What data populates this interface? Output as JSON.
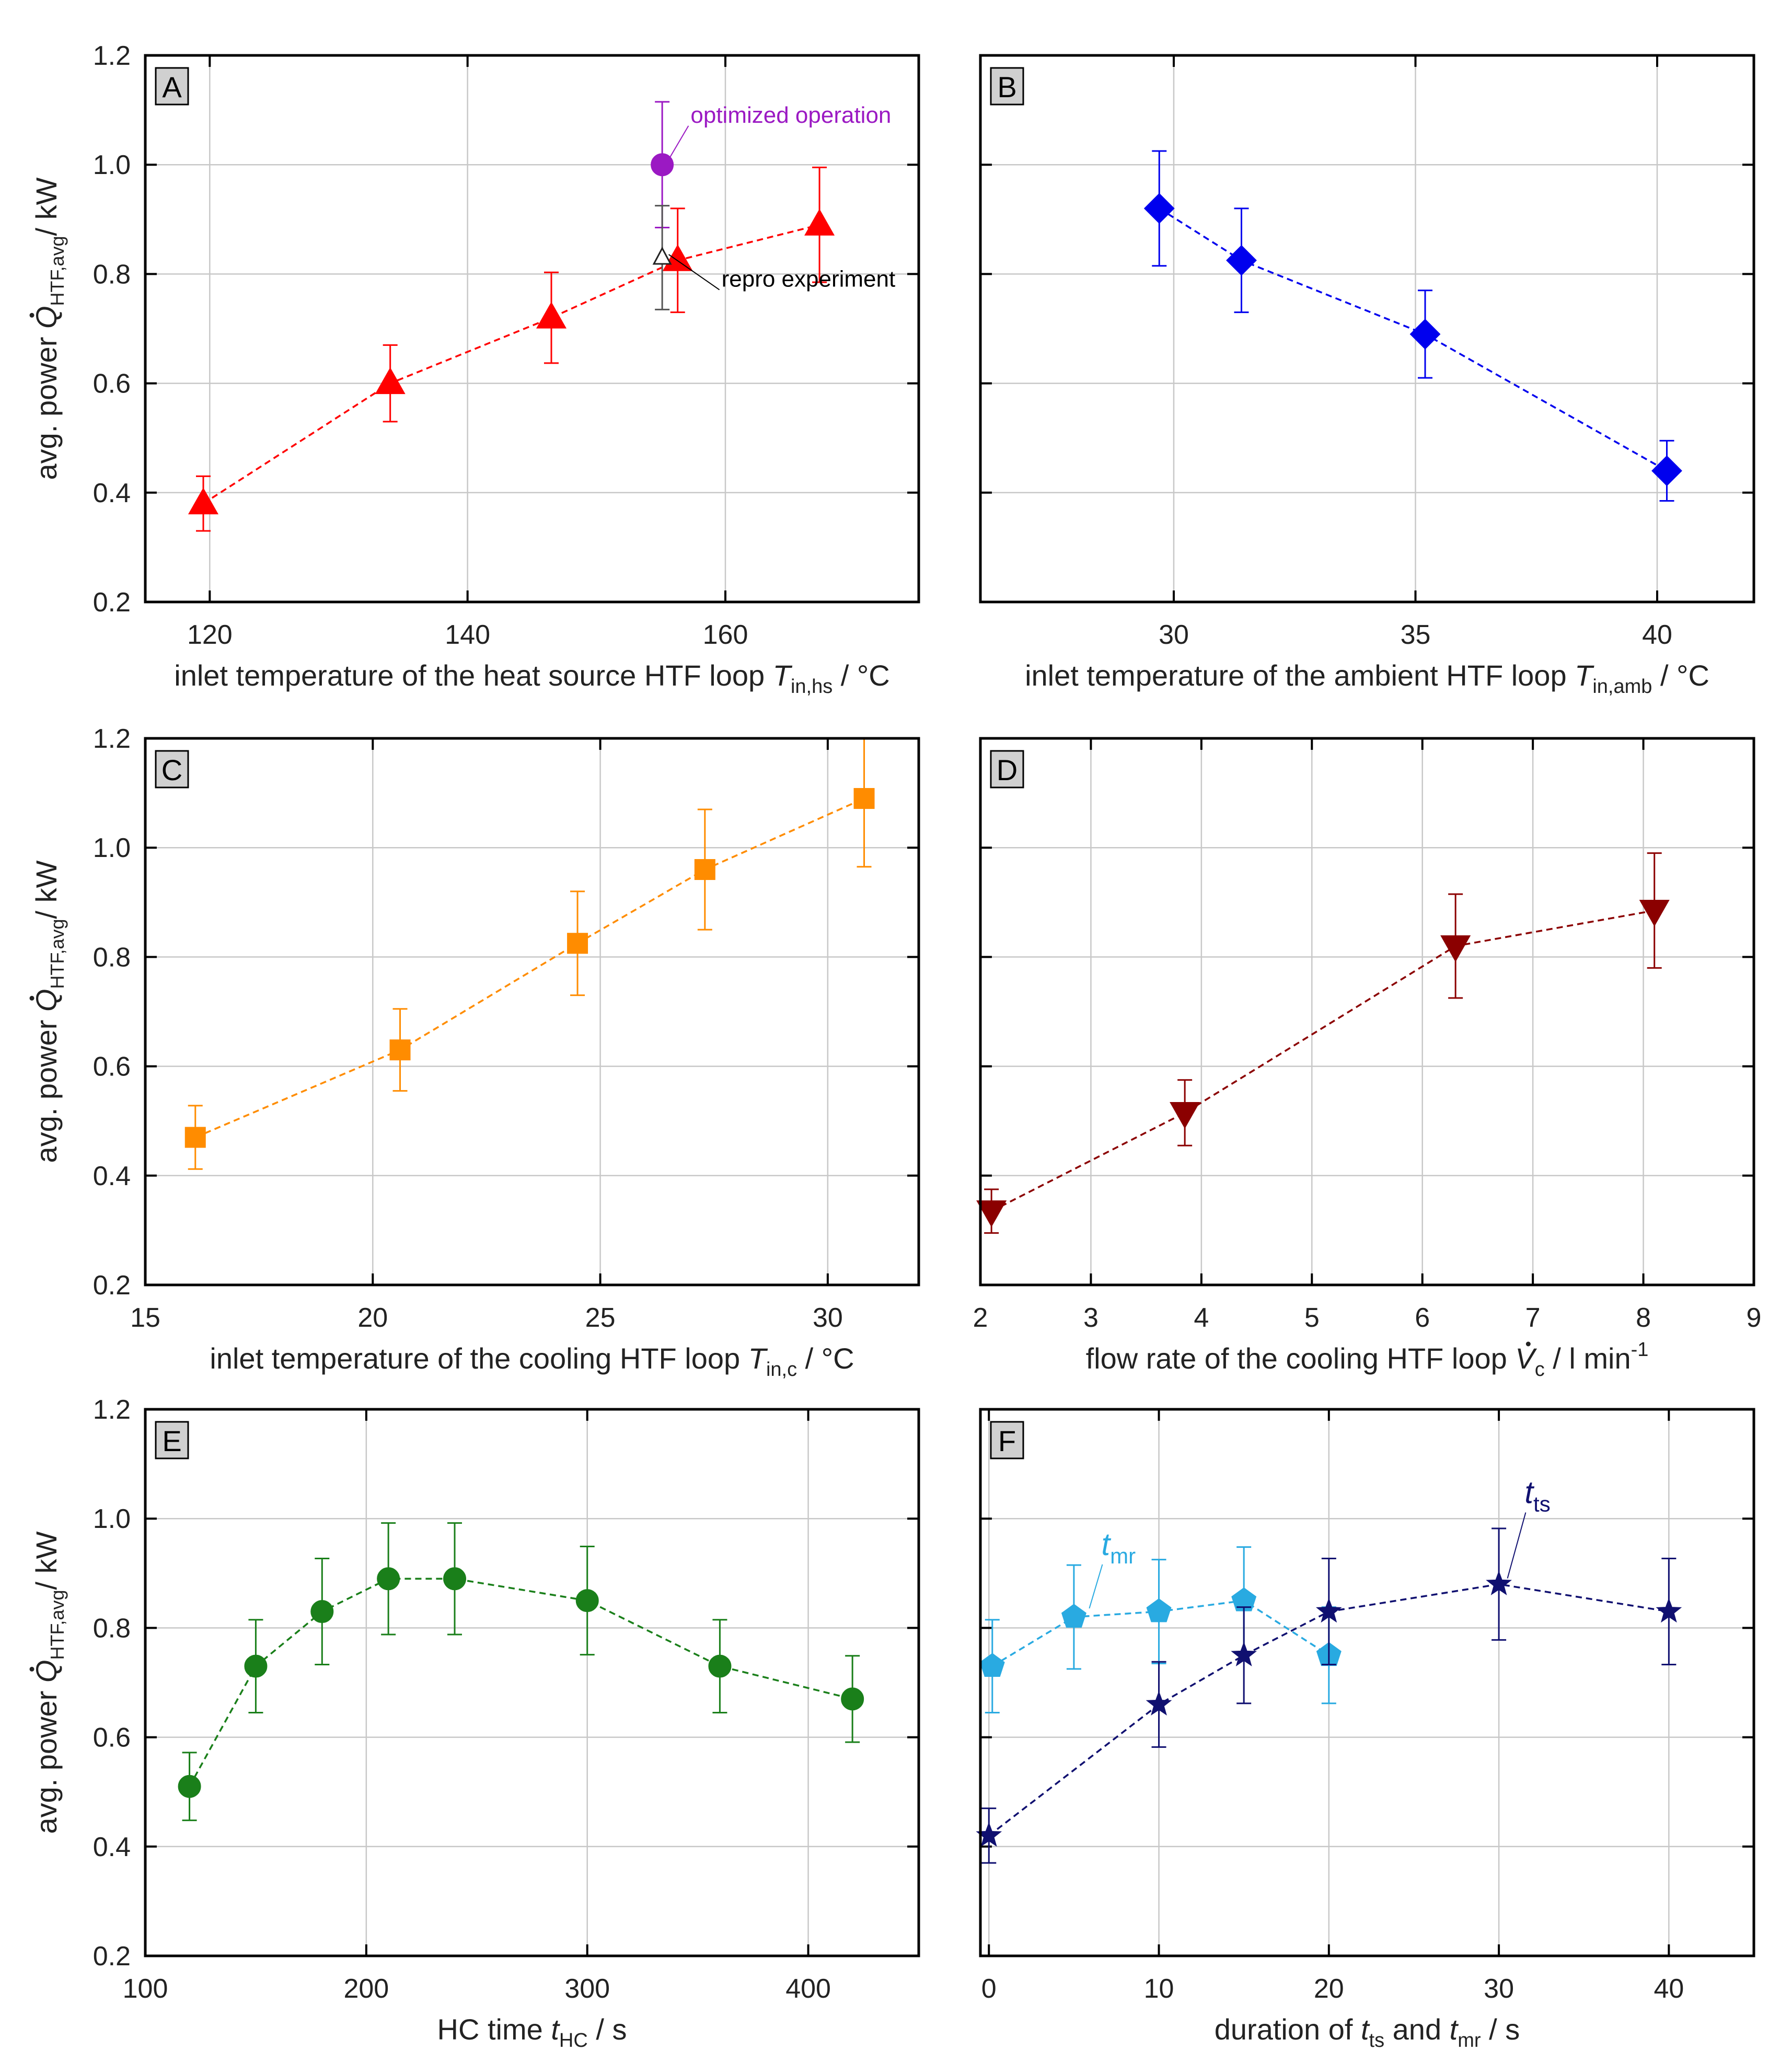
{
  "figure": {
    "y_axis_label": {
      "prefix": "avg. power ",
      "symbol": "Q",
      "subscript": "HTF,avg",
      "suffix": "/ kW"
    }
  },
  "chart_data": [
    {
      "id": "A",
      "type": "scatter",
      "panel_label": "A",
      "xlabel": {
        "text": "inlet temperature of the heat source HTF loop ",
        "symbol": "T",
        "subscript": "in,hs",
        "unit": " / °C"
      },
      "xlim": [
        115,
        175
      ],
      "xticks": [
        120,
        140,
        160
      ],
      "xtick_labels": [
        "120",
        "140",
        "160"
      ],
      "ylim": [
        0.2,
        1.2
      ],
      "yticks": [
        0.2,
        0.4,
        0.6,
        0.8,
        1.0,
        1.2
      ],
      "ytick_labels": [
        "0.2",
        "0.4",
        "0.6",
        "0.8",
        "1.0",
        "1.2"
      ],
      "show_y_labels": true,
      "grid": true,
      "series": [
        {
          "name": "heat source inlet temperature",
          "marker": "triangle-up",
          "color": "#ff0000",
          "line": true,
          "x": [
            119.5,
            134,
            146.5,
            156.3,
            167.3
          ],
          "y": [
            0.38,
            0.6,
            0.72,
            0.825,
            0.89
          ],
          "err": [
            0.05,
            0.07,
            0.083,
            0.095,
            0.105
          ]
        },
        {
          "name": "optimized operation",
          "marker": "circle",
          "color": "#9b19c3",
          "line": false,
          "x": [
            155.1
          ],
          "y": [
            1.0
          ],
          "err": [
            0.115
          ]
        },
        {
          "name": "repro experiment",
          "marker": "triangle-up-open",
          "color": "#222222",
          "line": false,
          "x": [
            155.1
          ],
          "y": [
            0.83
          ],
          "err": [
            0.095
          ]
        }
      ],
      "annotations": [
        {
          "text": "optimized operation",
          "color": "#9b19c3",
          "ax": 155.1,
          "ay": 1.0,
          "tx": 157.3,
          "ty": 1.075
        },
        {
          "text": "repro experiment",
          "color": "#000000",
          "ax": 155.2,
          "ay": 0.83,
          "tx": 159.7,
          "ty": 0.775
        }
      ]
    },
    {
      "id": "B",
      "type": "scatter",
      "panel_label": "B",
      "xlabel": {
        "text": "inlet temperature of the ambient HTF loop ",
        "symbol": "T",
        "subscript": "in,amb",
        "unit": " / °C"
      },
      "xlim": [
        26,
        42
      ],
      "xticks": [
        30,
        35,
        40
      ],
      "xtick_labels": [
        "30",
        "35",
        "40"
      ],
      "ylim": [
        0.2,
        1.2
      ],
      "yticks": [
        0.2,
        0.4,
        0.6,
        0.8,
        1.0,
        1.2
      ],
      "ytick_labels": [],
      "show_y_labels": false,
      "grid": true,
      "series": [
        {
          "name": "ambient inlet temperature",
          "marker": "diamond",
          "color": "#0000ee",
          "line": true,
          "x": [
            29.7,
            31.4,
            35.2,
            40.2
          ],
          "y": [
            0.92,
            0.825,
            0.69,
            0.44
          ],
          "err": [
            0.105,
            0.095,
            0.08,
            0.055
          ]
        }
      ],
      "annotations": []
    },
    {
      "id": "C",
      "type": "scatter",
      "panel_label": "C",
      "xlabel": {
        "text": "inlet temperature of the cooling HTF loop ",
        "symbol": "T",
        "subscript": "in,c",
        "unit": " / °C"
      },
      "xlim": [
        15,
        32
      ],
      "xticks": [
        15,
        20,
        25,
        30
      ],
      "xtick_labels": [
        "15",
        "20",
        "25",
        "30"
      ],
      "ylim": [
        0.2,
        1.2
      ],
      "yticks": [
        0.2,
        0.4,
        0.6,
        0.8,
        1.0,
        1.2
      ],
      "ytick_labels": [
        "0.2",
        "0.4",
        "0.6",
        "0.8",
        "1.0",
        "1.2"
      ],
      "show_y_labels": true,
      "grid": true,
      "series": [
        {
          "name": "cooling inlet temperature",
          "marker": "square",
          "color": "#ff8c00",
          "line": true,
          "x": [
            16.1,
            20.6,
            24.5,
            27.3,
            30.8
          ],
          "y": [
            0.47,
            0.63,
            0.825,
            0.96,
            1.09
          ],
          "err": [
            0.058,
            0.075,
            0.095,
            0.11,
            0.125
          ]
        }
      ],
      "annotations": []
    },
    {
      "id": "D",
      "type": "scatter",
      "panel_label": "D",
      "xlabel": {
        "text": "flow rate of the cooling HTF loop ",
        "symbol": "V",
        "subscript": "c",
        "unit": " / l min",
        "superscript": "-1"
      },
      "xlim": [
        2,
        9
      ],
      "xticks": [
        2,
        3,
        4,
        5,
        6,
        7,
        8,
        9
      ],
      "xtick_labels": [
        "2",
        "3",
        "4",
        "5",
        "6",
        "7",
        "8",
        "9"
      ],
      "ylim": [
        0.2,
        1.2
      ],
      "yticks": [
        0.2,
        0.4,
        0.6,
        0.8,
        1.0,
        1.2
      ],
      "ytick_labels": [],
      "show_y_labels": false,
      "grid": true,
      "series": [
        {
          "name": "cooling flow rate",
          "marker": "triangle-down",
          "color": "#8b0000",
          "line": true,
          "x": [
            2.1,
            3.85,
            6.3,
            8.1
          ],
          "y": [
            0.335,
            0.515,
            0.82,
            0.885
          ],
          "err": [
            0.04,
            0.06,
            0.095,
            0.105
          ]
        }
      ],
      "annotations": []
    },
    {
      "id": "E",
      "type": "scatter",
      "panel_label": "E",
      "xlabel": {
        "text": "HC time ",
        "symbol": "t",
        "subscript": "HC",
        "unit": " / s"
      },
      "xlim": [
        100,
        450
      ],
      "xticks": [
        100,
        200,
        300,
        400
      ],
      "xtick_labels": [
        "100",
        "200",
        "300",
        "400"
      ],
      "ylim": [
        0.2,
        1.2
      ],
      "yticks": [
        0.2,
        0.4,
        0.6,
        0.8,
        1.0,
        1.2
      ],
      "ytick_labels": [
        "0.2",
        "0.4",
        "0.6",
        "0.8",
        "1.0",
        "1.2"
      ],
      "show_y_labels": true,
      "grid": true,
      "series": [
        {
          "name": "HC time",
          "marker": "circle",
          "color": "#1a7f1a",
          "line": true,
          "x": [
            120,
            150,
            180,
            210,
            240,
            300,
            360,
            420
          ],
          "y": [
            0.51,
            0.73,
            0.83,
            0.89,
            0.89,
            0.85,
            0.73,
            0.67
          ],
          "err": [
            0.062,
            0.085,
            0.097,
            0.102,
            0.102,
            0.099,
            0.085,
            0.079
          ]
        }
      ],
      "annotations": []
    },
    {
      "id": "F",
      "type": "scatter",
      "panel_label": "F",
      "xlabel": {
        "text": "duration of  ",
        "symbol": "t",
        "subscript": "ts",
        "middle": " and ",
        "symbol2": "t",
        "subscript2": "mr",
        "unit": "  / s"
      },
      "xlim": [
        -0.5,
        45
      ],
      "xticks": [
        0,
        10,
        20,
        30,
        40
      ],
      "xtick_labels": [
        "0",
        "10",
        "20",
        "30",
        "40"
      ],
      "ylim": [
        0.2,
        1.2
      ],
      "yticks": [
        0.2,
        0.4,
        0.6,
        0.8,
        1.0,
        1.2
      ],
      "ytick_labels": [],
      "show_y_labels": false,
      "grid": true,
      "series": [
        {
          "name": "t_mr",
          "marker": "pentagon",
          "color": "#29aae1",
          "line": true,
          "x": [
            0.2,
            5,
            10,
            15,
            20
          ],
          "y": [
            0.73,
            0.82,
            0.83,
            0.85,
            0.75
          ],
          "err": [
            0.085,
            0.095,
            0.095,
            0.098,
            0.088
          ]
        },
        {
          "name": "t_ts",
          "marker": "star",
          "color": "#101070",
          "line": true,
          "x": [
            0,
            10,
            15,
            20,
            30,
            40
          ],
          "y": [
            0.42,
            0.66,
            0.75,
            0.83,
            0.88,
            0.83
          ],
          "err": [
            0.05,
            0.078,
            0.088,
            0.097,
            0.102,
            0.097
          ]
        }
      ],
      "annotations": [
        {
          "symbol": "t",
          "subscript": "mr",
          "color": "#29aae1",
          "ax": 5.6,
          "ay": 0.83,
          "tx": 6.8,
          "ty": 0.92
        },
        {
          "symbol": "t",
          "subscript": "ts",
          "color": "#101070",
          "ax": 30.2,
          "ay": 0.885,
          "tx": 31.7,
          "ty": 1.015
        }
      ]
    }
  ]
}
